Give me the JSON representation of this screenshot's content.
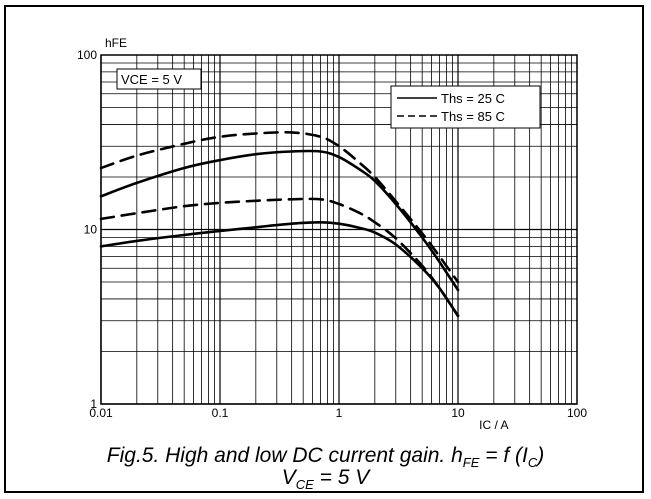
{
  "chart_data": {
    "type": "line",
    "xscale": "log",
    "yscale": "log",
    "xlim": [
      0.01,
      100
    ],
    "ylim": [
      1,
      100
    ],
    "xlabel": "IC / A",
    "ylabel": "hFE",
    "x_ticks": [
      "0.01",
      "0.1",
      "1",
      "10",
      "100"
    ],
    "y_ticks": [
      "1",
      "10",
      "100"
    ],
    "grid": true,
    "condition_label": "VCE = 5 V",
    "legend": {
      "position": "top-right",
      "entries": [
        {
          "label": "Ths = 25 C",
          "style": "solid"
        },
        {
          "label": "Ths = 85 C",
          "style": "dashed"
        }
      ]
    },
    "series": [
      {
        "name": "Ths = 25 C",
        "style": "solid",
        "group": "high",
        "x": [
          0.01,
          0.02,
          0.05,
          0.1,
          0.2,
          0.4,
          0.7,
          1,
          1.5,
          2,
          3,
          5,
          7,
          10
        ],
        "y": [
          15.5,
          18.5,
          22.5,
          25,
          27,
          28,
          28,
          26,
          22,
          19,
          14,
          9,
          6.5,
          4.5
        ]
      },
      {
        "name": "Ths = 85 C",
        "style": "dashed",
        "group": "high",
        "x": [
          0.01,
          0.02,
          0.05,
          0.1,
          0.2,
          0.4,
          0.7,
          1,
          1.5,
          2,
          3,
          5,
          7,
          10
        ],
        "y": [
          22.5,
          26.5,
          31,
          34,
          35.5,
          36,
          34,
          30,
          24,
          20,
          14.5,
          9.5,
          7,
          5
        ]
      },
      {
        "name": "Ths = 25 C",
        "style": "solid",
        "group": "low",
        "x": [
          0.01,
          0.02,
          0.05,
          0.1,
          0.2,
          0.4,
          0.7,
          1,
          1.5,
          2,
          3,
          5,
          7,
          10
        ],
        "y": [
          8,
          8.6,
          9.3,
          9.8,
          10.3,
          10.8,
          11,
          10.8,
          10.2,
          9.6,
          8.2,
          6,
          4.6,
          3.2
        ]
      },
      {
        "name": "Ths = 85 C",
        "style": "dashed",
        "group": "low",
        "x": [
          0.01,
          0.02,
          0.05,
          0.1,
          0.2,
          0.4,
          0.7,
          1,
          1.5,
          2,
          3,
          5,
          7,
          10
        ],
        "y": [
          11.5,
          12.4,
          13.6,
          14.2,
          14.6,
          14.9,
          14.9,
          14,
          12.4,
          11,
          8.9,
          6.2,
          4.6,
          3.2
        ]
      }
    ]
  },
  "caption": {
    "line1_prefix": "Fig.5.   High and low DC current gain. h",
    "line1_sub1": "FE",
    "line1_mid": " = f (I",
    "line1_sub2": "C",
    "line1_suffix": ")",
    "line2_prefix": "V",
    "line2_sub": "CE",
    "line2_suffix": " = 5 V"
  }
}
